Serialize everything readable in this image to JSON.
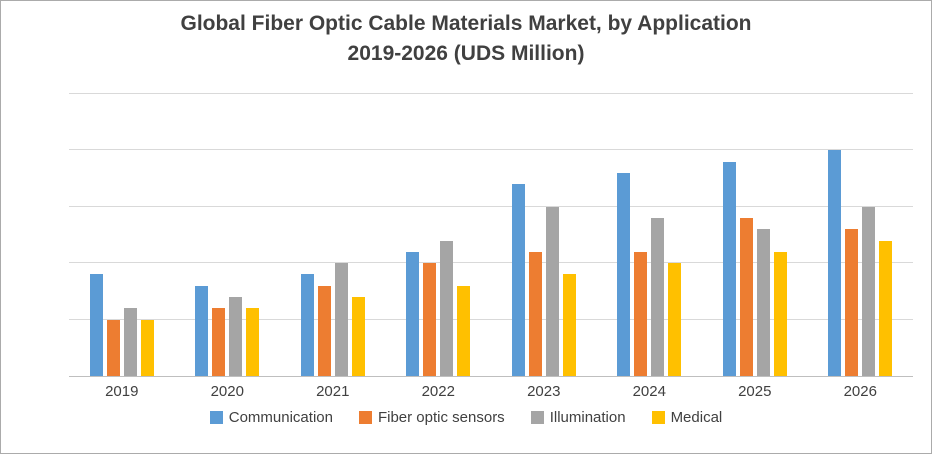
{
  "window": {
    "background": "#ffffff",
    "border_color": "#ababab"
  },
  "chart_data": {
    "type": "bar",
    "title": "Global  Fiber Optic Cable Materials Market, by Application 2019-2026 (UDS Million)",
    "title_lines": [
      "Global  Fiber Optic Cable Materials Market, by Application",
      "2019-2026 (UDS Million)"
    ],
    "title_color": "#404040",
    "categories": [
      "2019",
      "2020",
      "2021",
      "2022",
      "2023",
      "2024",
      "2025",
      "2026"
    ],
    "series": [
      {
        "name": "Communication",
        "color": "#5B9BD5",
        "values": [
          1.8,
          1.6,
          1.8,
          2.2,
          3.4,
          3.6,
          3.8,
          4.0
        ]
      },
      {
        "name": "Fiber optic sensors",
        "color": "#ED7D31",
        "values": [
          1.0,
          1.2,
          1.6,
          2.0,
          2.2,
          2.2,
          2.8,
          2.6
        ]
      },
      {
        "name": "Illumination",
        "color": "#A5A5A5",
        "values": [
          1.2,
          1.4,
          2.0,
          2.4,
          3.0,
          2.8,
          2.6,
          3.0
        ]
      },
      {
        "name": "Medical",
        "color": "#FFC000",
        "values": [
          1.0,
          1.2,
          1.4,
          1.6,
          1.8,
          2.0,
          2.2,
          2.4
        ]
      }
    ],
    "xlabel": "",
    "ylabel": "",
    "ylim": [
      0,
      5
    ],
    "gridline_interval": 1,
    "grid": true,
    "y_axis_tick_labels_visible": false,
    "gridline_color": "#d9d9d9",
    "axis_line_color": "#bfbfbf",
    "legend_position": "bottom"
  }
}
